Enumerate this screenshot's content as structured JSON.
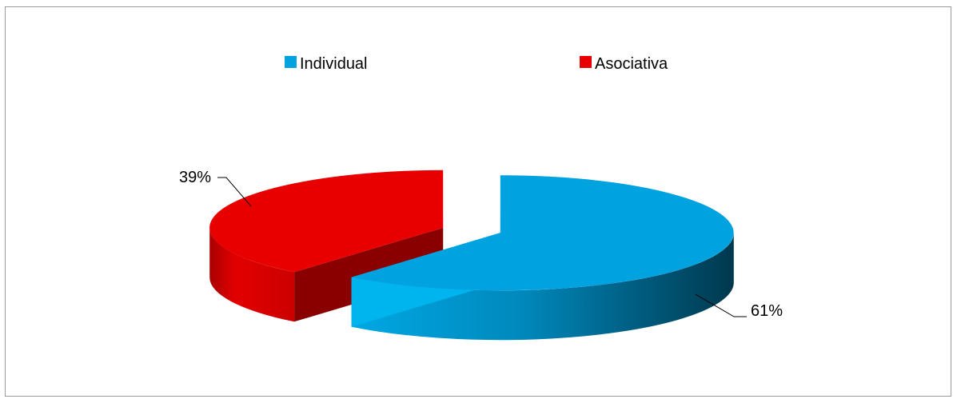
{
  "chart_data": {
    "type": "pie",
    "title": "",
    "legend_position": "top",
    "series": [
      {
        "name": "Individual",
        "value": 61,
        "label": "61%",
        "color": "#00a2e0"
      },
      {
        "name": "Asociativa",
        "value": 39,
        "label": "39%",
        "color": "#e80000"
      }
    ]
  }
}
